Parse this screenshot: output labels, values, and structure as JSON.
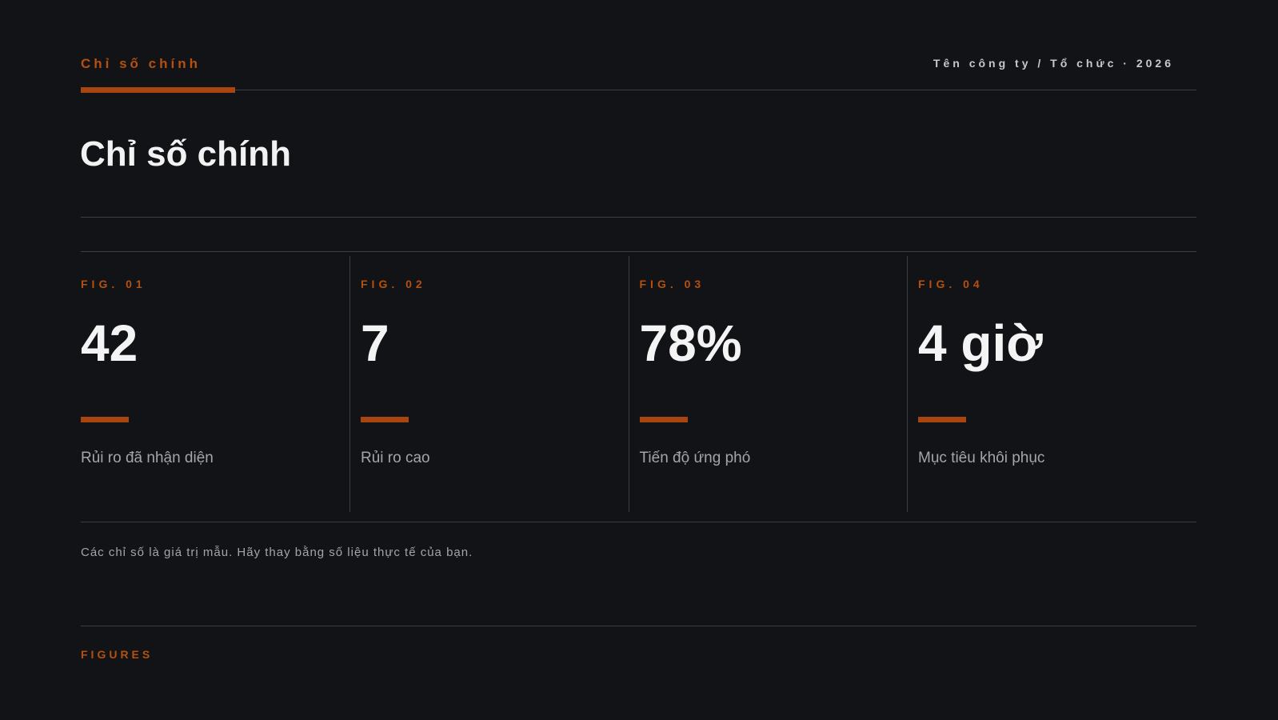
{
  "header": {
    "eyebrow": "Chỉ số chính",
    "org": "Tên công ty / Tổ chức · 2026"
  },
  "title": "Chỉ số chính",
  "stats": [
    {
      "fig": "FIG. 01",
      "value": "42",
      "label": "Rủi ro đã nhận diện"
    },
    {
      "fig": "FIG. 02",
      "value": "7",
      "label": "Rủi ro cao"
    },
    {
      "fig": "FIG. 03",
      "value": "78%",
      "label": "Tiến độ ứng phó"
    },
    {
      "fig": "FIG. 04",
      "value": "4 giờ",
      "label": "Mục tiêu khôi phục"
    }
  ],
  "note": "Các chỉ số là giá trị mẫu. Hãy thay bằng số liệu thực tế của bạn.",
  "footer": "FIGURES"
}
